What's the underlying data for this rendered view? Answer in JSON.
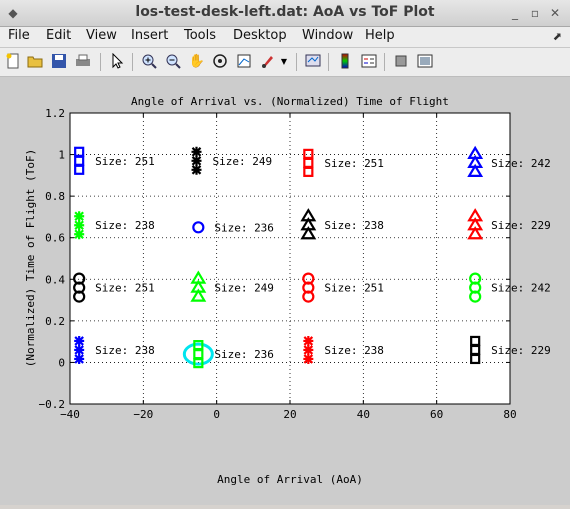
{
  "window": {
    "title": "los-test-desk-left.dat: AoA vs ToF Plot"
  },
  "menu": [
    {
      "label": "File"
    },
    {
      "label": "Edit"
    },
    {
      "label": "View"
    },
    {
      "label": "Insert"
    },
    {
      "label": "Tools"
    },
    {
      "label": "Desktop"
    },
    {
      "label": "Window"
    },
    {
      "label": "Help"
    }
  ],
  "toolbar": {
    "icons": [
      "new-figure-icon",
      "open-file-icon",
      "save-icon",
      "print-icon",
      "select-arrow-icon",
      "zoom-in-icon",
      "zoom-out-icon",
      "pan-hand-icon",
      "rotate-3d-icon",
      "data-cursor-icon",
      "brush-icon",
      "brush-dropdown-icon",
      "link-plot-icon",
      "insert-colorbar-icon",
      "insert-legend-icon",
      "hide-plot-tools-icon",
      "show-plot-tools-icon"
    ]
  },
  "chart_data": {
    "type": "scatter",
    "title": "Angle of Arrival vs. (Normalized) Time of Flight",
    "xlabel": "Angle of Arrival (AoA)",
    "ylabel": "(Normalized) Time of Flight (ToF)",
    "xlim": [
      -40,
      80
    ],
    "ylim": [
      -0.2,
      1.2
    ],
    "xticks": [
      -40,
      -20,
      0,
      20,
      40,
      60,
      80
    ],
    "yticks": [
      -0.2,
      0,
      0.2,
      0.4,
      0.6,
      0.8,
      1,
      1.2
    ],
    "grid": true,
    "clusters": [
      {
        "x": -37.5,
        "y": 0.97,
        "marker": "square",
        "color": "#0000ff",
        "label": "Size: 251"
      },
      {
        "x": -5.5,
        "y": 0.97,
        "marker": "star",
        "color": "#000000",
        "label": "Size: 249"
      },
      {
        "x": 25,
        "y": 0.96,
        "marker": "square",
        "color": "#ff0000",
        "label": "Size: 251"
      },
      {
        "x": 70.5,
        "y": 0.96,
        "marker": "triangle",
        "color": "#0000ff",
        "label": "Size: 242"
      },
      {
        "x": -37.5,
        "y": 0.66,
        "marker": "star",
        "color": "#00ff00",
        "label": "Size: 238"
      },
      {
        "x": -5,
        "y": 0.65,
        "marker": "circle",
        "color": "#0000ff",
        "label": "Size: 236",
        "single": true
      },
      {
        "x": 25,
        "y": 0.66,
        "marker": "triangle",
        "color": "#000000",
        "label": "Size: 238"
      },
      {
        "x": 70.5,
        "y": 0.66,
        "marker": "triangle",
        "color": "#ff0000",
        "label": "Size: 229"
      },
      {
        "x": -37.5,
        "y": 0.36,
        "marker": "circle",
        "color": "#000000",
        "label": "Size: 251"
      },
      {
        "x": -5,
        "y": 0.36,
        "marker": "triangle",
        "color": "#00ff00",
        "label": "Size: 249"
      },
      {
        "x": 25,
        "y": 0.36,
        "marker": "circle",
        "color": "#ff0000",
        "label": "Size: 251"
      },
      {
        "x": 70.5,
        "y": 0.36,
        "marker": "circle",
        "color": "#00ff00",
        "label": "Size: 242"
      },
      {
        "x": -37.5,
        "y": 0.06,
        "marker": "star",
        "color": "#0000ff",
        "label": "Size: 238"
      },
      {
        "x": -5,
        "y": 0.04,
        "marker": "square",
        "color": "#00ff00",
        "label": "Size: 236",
        "highlight": "#00e5ee"
      },
      {
        "x": 25,
        "y": 0.06,
        "marker": "star",
        "color": "#ff0000",
        "label": "Size: 238"
      },
      {
        "x": 70.5,
        "y": 0.06,
        "marker": "square",
        "color": "#000000",
        "label": "Size: 229"
      }
    ]
  }
}
